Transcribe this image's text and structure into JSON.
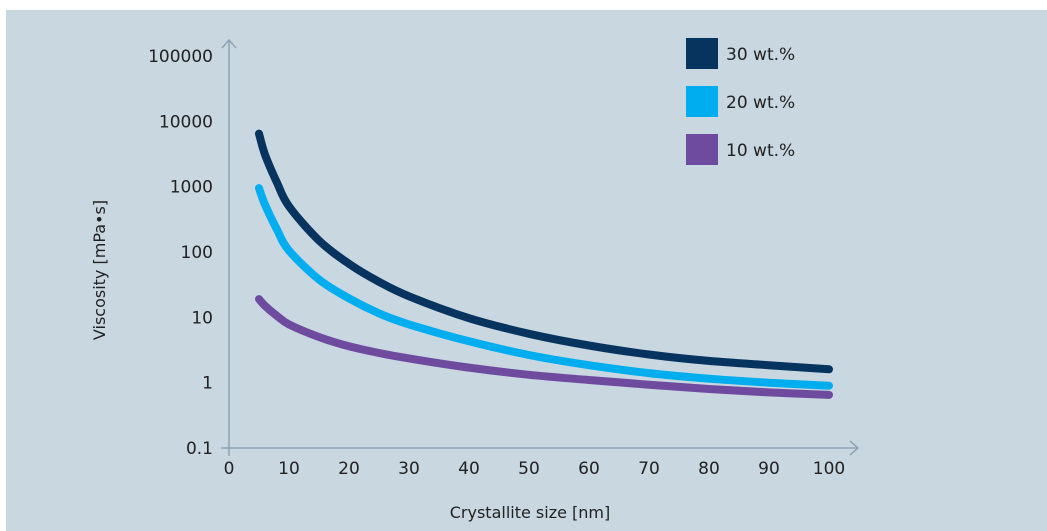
{
  "chart_data": {
    "type": "line",
    "title": "",
    "xlabel": "Crystallite size [nm]",
    "ylabel": "Viscosity [mPa•s]",
    "xlim": [
      0,
      100
    ],
    "ylim": [
      0.1,
      100000
    ],
    "yscale": "log",
    "x_ticks": [
      "0",
      "10",
      "20",
      "30",
      "40",
      "50",
      "60",
      "70",
      "80",
      "90",
      "100"
    ],
    "y_ticks": [
      "0.1",
      "1",
      "10",
      "100",
      "1000",
      "10000",
      "100000"
    ],
    "legend_position": "top-right",
    "grid": false,
    "series": [
      {
        "name": "30 wt.%",
        "color": "#06345f",
        "x": [
          5,
          6,
          8,
          10,
          15,
          20,
          25,
          30,
          40,
          50,
          60,
          70,
          80,
          90,
          100
        ],
        "y": [
          6500,
          3100,
          1150,
          500,
          150,
          66,
          35,
          21,
          9.7,
          5.6,
          3.7,
          2.7,
          2.15,
          1.85,
          1.6
        ]
      },
      {
        "name": "20 wt.%",
        "color": "#00aeef",
        "x": [
          5,
          6,
          8,
          10,
          15,
          20,
          25,
          30,
          40,
          50,
          60,
          70,
          80,
          90,
          100
        ],
        "y": [
          950,
          530,
          220,
          105,
          38,
          19.5,
          11.5,
          7.8,
          4.3,
          2.65,
          1.85,
          1.4,
          1.15,
          1.0,
          0.9
        ]
      },
      {
        "name": "10 wt.%",
        "color": "#6f4ba0",
        "x": [
          5,
          6,
          8,
          10,
          15,
          20,
          25,
          30,
          40,
          50,
          60,
          70,
          80,
          90,
          100
        ],
        "y": [
          19,
          15,
          10.5,
          7.8,
          5,
          3.6,
          2.85,
          2.35,
          1.7,
          1.32,
          1.1,
          0.93,
          0.8,
          0.71,
          0.65
        ]
      }
    ]
  }
}
